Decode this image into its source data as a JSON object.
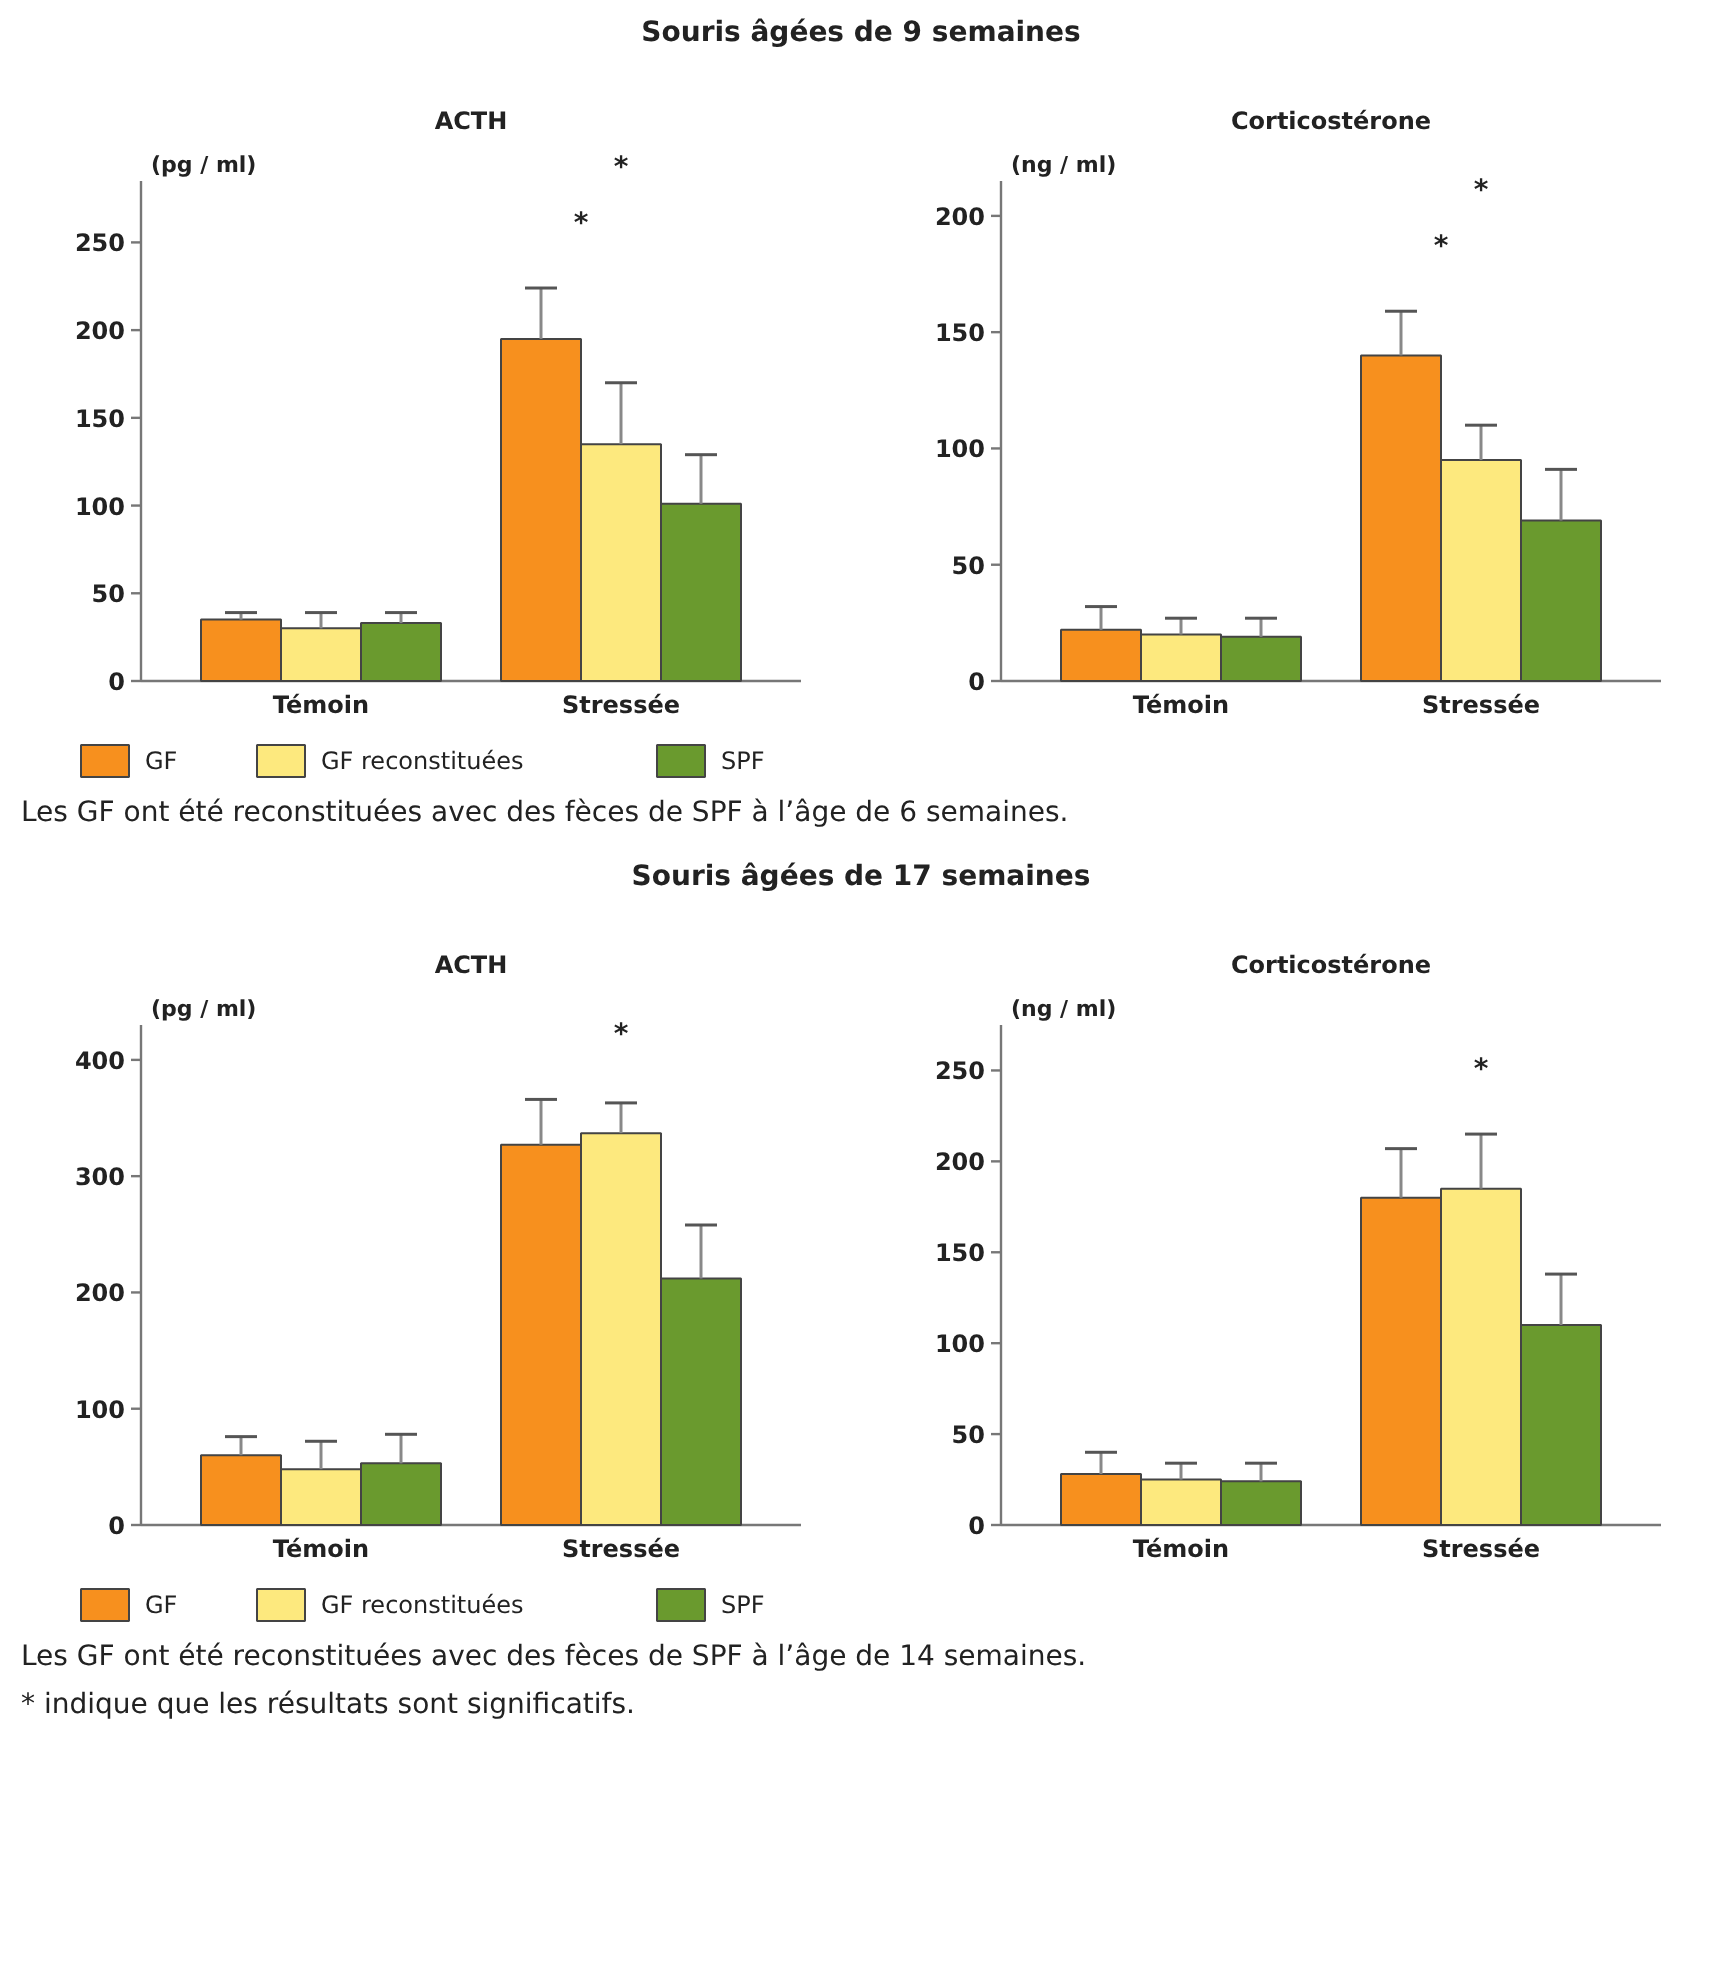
{
  "chart_data": [
    {
      "type": "bar",
      "subtitle": "Souris âgées de 9 semaines",
      "title": "ACTH",
      "ylabel": "(pg / ml)",
      "categories": [
        "Témoin",
        "Stressée"
      ],
      "ylim": [
        0,
        285
      ],
      "yticks": [
        0,
        50,
        100,
        150,
        200,
        250
      ],
      "grid": false,
      "legend": "bottom",
      "series": [
        {
          "name": "GF",
          "color": "#f7901e",
          "values": [
            35,
            195
          ],
          "errors": [
            [
              35,
              39
            ],
            [
              195,
              224
            ]
          ]
        },
        {
          "name": "GF reconstituées",
          "color": "#fde97e",
          "values": [
            30,
            135
          ],
          "errors": [
            [
              30,
              39
            ],
            [
              135,
              170
            ]
          ]
        },
        {
          "name": "SPF",
          "color": "#6a9a2e",
          "values": [
            33,
            101
          ],
          "errors": [
            [
              33,
              39
            ],
            [
              101,
              129
            ]
          ]
        }
      ],
      "annotations": [
        "*",
        "*"
      ]
    },
    {
      "type": "bar",
      "title": "Corticostérone",
      "ylabel": "(ng / ml)",
      "categories": [
        "Témoin",
        "Stressée"
      ],
      "ylim": [
        0,
        215
      ],
      "yticks": [
        0,
        50,
        100,
        150,
        200
      ],
      "grid": false,
      "series": [
        {
          "color": "#f7901e",
          "values": [
            22,
            140
          ],
          "errors": [
            [
              22,
              32
            ],
            [
              140,
              159
            ]
          ]
        },
        {
          "color": "#fde97e",
          "values": [
            20,
            95
          ],
          "errors": [
            [
              20,
              27
            ],
            [
              95,
              110
            ]
          ]
        },
        {
          "color": "#6a9a2e",
          "values": [
            19,
            69
          ],
          "errors": [
            [
              19,
              27
            ],
            [
              69,
              91
            ]
          ]
        }
      ],
      "annotations": [
        "*",
        "*",
        "Les GF ont été reconstituées avec des fèces de SPF à l’âge de 6 semaines."
      ]
    },
    {
      "type": "bar",
      "subtitle": "Souris âgées de 17 semaines",
      "title": "ACTH",
      "ylabel": "(pg / ml)",
      "categories": [
        "Témoin",
        "Stressée"
      ],
      "ylim": [
        0,
        430
      ],
      "yticks": [
        0,
        100,
        200,
        300,
        400
      ],
      "grid": false,
      "legend": "bottom",
      "series": [
        {
          "name": "GF",
          "color": "#f7901e",
          "values": [
            60,
            327
          ],
          "errors": [
            [
              60,
              76
            ],
            [
              327,
              366
            ]
          ]
        },
        {
          "name": "GF reconstituées",
          "color": "#fde97e",
          "values": [
            48,
            337
          ],
          "errors": [
            [
              48,
              72
            ],
            [
              337,
              363
            ]
          ]
        },
        {
          "name": "SPF",
          "color": "#6a9a2e",
          "values": [
            53,
            212
          ],
          "errors": [
            [
              53,
              78
            ],
            [
              212,
              258
            ]
          ]
        }
      ],
      "annotations": [
        "*"
      ]
    },
    {
      "type": "bar",
      "title": "Corticostérone",
      "ylabel": "(ng / ml)",
      "categories": [
        "Témoin",
        "Stressée"
      ],
      "ylim": [
        0,
        275
      ],
      "yticks": [
        0,
        50,
        100,
        150,
        200,
        250
      ],
      "grid": false,
      "series": [
        {
          "color": "#f7901e",
          "values": [
            28,
            180
          ],
          "errors": [
            [
              28,
              40
            ],
            [
              180,
              207
            ]
          ]
        },
        {
          "color": "#fde97e",
          "values": [
            25,
            185
          ],
          "errors": [
            [
              25,
              34
            ],
            [
              185,
              215
            ]
          ]
        },
        {
          "color": "#6a9a2e",
          "values": [
            24,
            110
          ],
          "errors": [
            [
              24,
              34
            ],
            [
              110,
              138
            ]
          ]
        }
      ],
      "annotations": [
        "*",
        "Les GF ont été reconstituées avec des fèces de SPF à l’âge de 14 semaines.",
        "* indique que les résultats sont significatifs."
      ]
    }
  ]
}
